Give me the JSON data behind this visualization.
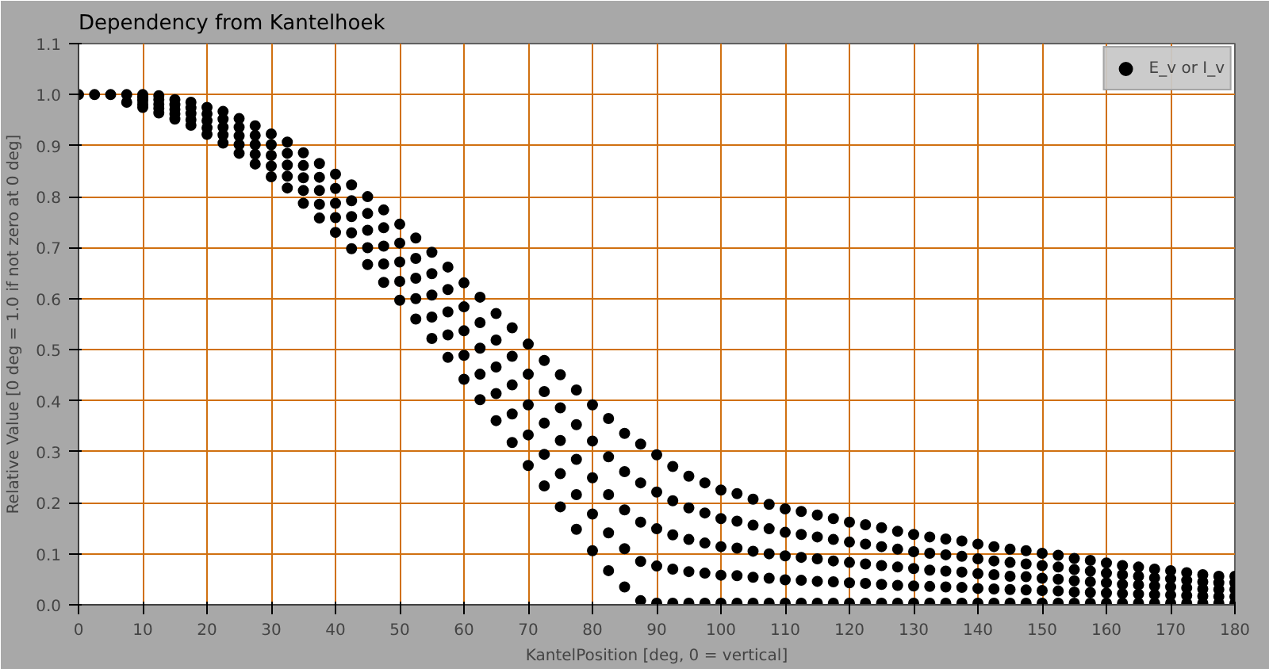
{
  "chart_data": {
    "type": "scatter",
    "title": "Dependency from Kantelhoek",
    "xlabel": "KantelPosition [deg, 0 = vertical]",
    "ylabel": "Relative Value [0 deg = 1.0 if not zero at 0 deg]",
    "xlim": [
      0,
      180
    ],
    "ylim": [
      0,
      1.1
    ],
    "xticks": [
      0,
      10,
      20,
      30,
      40,
      50,
      60,
      70,
      80,
      90,
      100,
      110,
      120,
      130,
      140,
      150,
      160,
      170,
      180
    ],
    "yticks": [
      {
        "value": 0,
        "label": "0.0"
      },
      0.1,
      0.2,
      0.3,
      0.4,
      0.5,
      0.6,
      0.7,
      0.8,
      0.9,
      {
        "value": 1,
        "label": "1.0"
      },
      1.1
    ],
    "grid": true,
    "legend": "top right",
    "marker": "circle",
    "series": [
      {
        "name": "E_v or I_v",
        "color": "#000000",
        "x": [
          0,
          2.5,
          5,
          7.5,
          7.5,
          10,
          10,
          10,
          10,
          10,
          12.5,
          12.5,
          12.5,
          12.5,
          12.5,
          15,
          15,
          15,
          15,
          15,
          17.5,
          17.5,
          17.5,
          17.5,
          17.5,
          20,
          20,
          20,
          20,
          20,
          22.5,
          22.5,
          22.5,
          22.5,
          22.5,
          25,
          25,
          25,
          25,
          25,
          27.5,
          27.5,
          27.5,
          27.5,
          27.5,
          30,
          30,
          30,
          30,
          30,
          32.5,
          32.5,
          32.5,
          32.5,
          32.5,
          35,
          35,
          35,
          35,
          35,
          37.5,
          37.5,
          37.5,
          37.5,
          37.5,
          40,
          40,
          40,
          40,
          40,
          42.5,
          42.5,
          42.5,
          42.5,
          42.5,
          45,
          45,
          45,
          45,
          45,
          47.5,
          47.5,
          47.5,
          47.5,
          47.5,
          50,
          50,
          50,
          50,
          50,
          52.5,
          52.5,
          52.5,
          52.5,
          52.5,
          55,
          55,
          55,
          55,
          55,
          57.5,
          57.5,
          57.5,
          57.5,
          57.5,
          60,
          60,
          60,
          60,
          60,
          62.5,
          62.5,
          62.5,
          62.5,
          62.5,
          65,
          65,
          65,
          65,
          65,
          67.5,
          67.5,
          67.5,
          67.5,
          67.5,
          70,
          70,
          70,
          70,
          70,
          72.5,
          72.5,
          72.5,
          72.5,
          72.5,
          75,
          75,
          75,
          75,
          75,
          77.5,
          77.5,
          77.5,
          77.5,
          77.5,
          80,
          80,
          80,
          80,
          80,
          82.5,
          82.5,
          82.5,
          82.5,
          82.5,
          85,
          85,
          85,
          85,
          85,
          87.5,
          87.5,
          87.5,
          87.5,
          87.5,
          90,
          90,
          90,
          90,
          90,
          92.5,
          92.5,
          92.5,
          92.5,
          92.5,
          95,
          95,
          95,
          95,
          95,
          97.5,
          97.5,
          97.5,
          97.5,
          97.5,
          100,
          100,
          100,
          100,
          100,
          102.5,
          102.5,
          102.5,
          102.5,
          102.5,
          105,
          105,
          105,
          105,
          105,
          107.5,
          107.5,
          107.5,
          107.5,
          107.5,
          110,
          110,
          110,
          110,
          110,
          112.5,
          112.5,
          112.5,
          112.5,
          112.5,
          115,
          115,
          115,
          115,
          115,
          117.5,
          117.5,
          117.5,
          117.5,
          117.5,
          120,
          120,
          120,
          120,
          120,
          122.5,
          122.5,
          122.5,
          122.5,
          122.5,
          125,
          125,
          125,
          125,
          125,
          127.5,
          127.5,
          127.5,
          127.5,
          127.5,
          130,
          130,
          130,
          130,
          130,
          132.5,
          132.5,
          132.5,
          132.5,
          132.5,
          135,
          135,
          135,
          135,
          135,
          137.5,
          137.5,
          137.5,
          137.5,
          137.5,
          140,
          140,
          140,
          140,
          140,
          142.5,
          142.5,
          142.5,
          142.5,
          142.5,
          145,
          145,
          145,
          145,
          145,
          147.5,
          147.5,
          147.5,
          147.5,
          147.5,
          150,
          150,
          150,
          150,
          150,
          152.5,
          152.5,
          152.5,
          152.5,
          152.5,
          155,
          155,
          155,
          155,
          155,
          157.5,
          157.5,
          157.5,
          157.5,
          157.5,
          160,
          160,
          160,
          160,
          160,
          162.5,
          162.5,
          162.5,
          162.5,
          162.5,
          165,
          165,
          165,
          165,
          165,
          167.5,
          167.5,
          167.5,
          167.5,
          167.5,
          170,
          170,
          170,
          170,
          170,
          172.5,
          172.5,
          172.5,
          172.5,
          172.5,
          175,
          175,
          175,
          175,
          175,
          177.5,
          177.5,
          177.5,
          177.5,
          177.5,
          180,
          180,
          180,
          180,
          180
        ],
        "values": [
          1.0,
          1.0,
          1.0,
          1.0,
          0.985,
          1.0,
          0.994,
          0.988,
          0.981,
          0.975,
          0.998,
          0.99,
          0.981,
          0.973,
          0.964,
          0.99,
          0.98,
          0.971,
          0.962,
          0.952,
          0.985,
          0.974,
          0.963,
          0.951,
          0.94,
          0.975,
          0.962,
          0.949,
          0.935,
          0.922,
          0.967,
          0.952,
          0.936,
          0.921,
          0.905,
          0.953,
          0.936,
          0.919,
          0.902,
          0.885,
          0.939,
          0.92,
          0.902,
          0.883,
          0.864,
          0.923,
          0.902,
          0.881,
          0.86,
          0.839,
          0.907,
          0.885,
          0.862,
          0.84,
          0.817,
          0.886,
          0.861,
          0.837,
          0.812,
          0.787,
          0.865,
          0.838,
          0.812,
          0.785,
          0.758,
          0.844,
          0.816,
          0.787,
          0.759,
          0.73,
          0.823,
          0.792,
          0.761,
          0.729,
          0.698,
          0.8,
          0.767,
          0.734,
          0.7,
          0.667,
          0.774,
          0.739,
          0.703,
          0.668,
          0.632,
          0.746,
          0.709,
          0.672,
          0.634,
          0.597,
          0.719,
          0.679,
          0.64,
          0.6,
          0.56,
          0.691,
          0.649,
          0.607,
          0.564,
          0.522,
          0.662,
          0.618,
          0.574,
          0.529,
          0.485,
          0.631,
          0.584,
          0.537,
          0.489,
          0.442,
          0.603,
          0.553,
          0.503,
          0.452,
          0.402,
          0.571,
          0.519,
          0.466,
          0.414,
          0.361,
          0.543,
          0.487,
          0.431,
          0.374,
          0.318,
          0.511,
          0.452,
          0.392,
          0.333,
          0.273,
          0.479,
          0.418,
          0.356,
          0.295,
          0.233,
          0.451,
          0.386,
          0.322,
          0.257,
          0.192,
          0.421,
          0.353,
          0.285,
          0.216,
          0.148,
          0.392,
          0.321,
          0.249,
          0.178,
          0.106,
          0.365,
          0.29,
          0.216,
          0.141,
          0.067,
          0.336,
          0.261,
          0.186,
          0.11,
          0.035,
          0.315,
          0.239,
          0.162,
          0.085,
          0.008,
          0.294,
          0.221,
          0.149,
          0.076,
          0.003,
          0.271,
          0.204,
          0.137,
          0.07,
          0.003,
          0.252,
          0.19,
          0.128,
          0.065,
          0.003,
          0.239,
          0.18,
          0.121,
          0.062,
          0.003,
          0.225,
          0.169,
          0.114,
          0.058,
          0.003,
          0.218,
          0.164,
          0.111,
          0.057,
          0.003,
          0.207,
          0.156,
          0.105,
          0.054,
          0.003,
          0.197,
          0.149,
          0.1,
          0.052,
          0.003,
          0.188,
          0.142,
          0.096,
          0.049,
          0.003,
          0.183,
          0.138,
          0.093,
          0.048,
          0.003,
          0.176,
          0.133,
          0.09,
          0.046,
          0.003,
          0.169,
          0.128,
          0.086,
          0.045,
          0.003,
          0.162,
          0.123,
          0.083,
          0.043,
          0.003,
          0.157,
          0.119,
          0.08,
          0.042,
          0.003,
          0.151,
          0.114,
          0.077,
          0.04,
          0.003,
          0.144,
          0.109,
          0.074,
          0.038,
          0.003,
          0.138,
          0.104,
          0.071,
          0.037,
          0.003,
          0.133,
          0.101,
          0.068,
          0.036,
          0.003,
          0.129,
          0.098,
          0.066,
          0.035,
          0.003,
          0.125,
          0.095,
          0.064,
          0.034,
          0.003,
          0.119,
          0.09,
          0.061,
          0.032,
          0.003,
          0.114,
          0.086,
          0.059,
          0.031,
          0.003,
          0.109,
          0.083,
          0.056,
          0.03,
          0.003,
          0.106,
          0.08,
          0.055,
          0.029,
          0.003,
          0.101,
          0.077,
          0.052,
          0.028,
          0.003,
          0.097,
          0.074,
          0.05,
          0.027,
          0.003,
          0.091,
          0.069,
          0.047,
          0.025,
          0.003,
          0.087,
          0.066,
          0.045,
          0.024,
          0.003,
          0.082,
          0.062,
          0.043,
          0.023,
          0.003,
          0.077,
          0.059,
          0.04,
          0.022,
          0.003,
          0.074,
          0.056,
          0.039,
          0.021,
          0.003,
          0.07,
          0.053,
          0.037,
          0.02,
          0.003,
          0.067,
          0.051,
          0.035,
          0.019,
          0.003,
          0.063,
          0.048,
          0.033,
          0.018,
          0.003,
          0.059,
          0.045,
          0.031,
          0.017,
          0.003,
          0.056,
          0.043,
          0.03,
          0.016,
          0.003,
          0.056,
          0.043,
          0.03,
          0.016,
          0.003
        ]
      }
    ]
  }
}
